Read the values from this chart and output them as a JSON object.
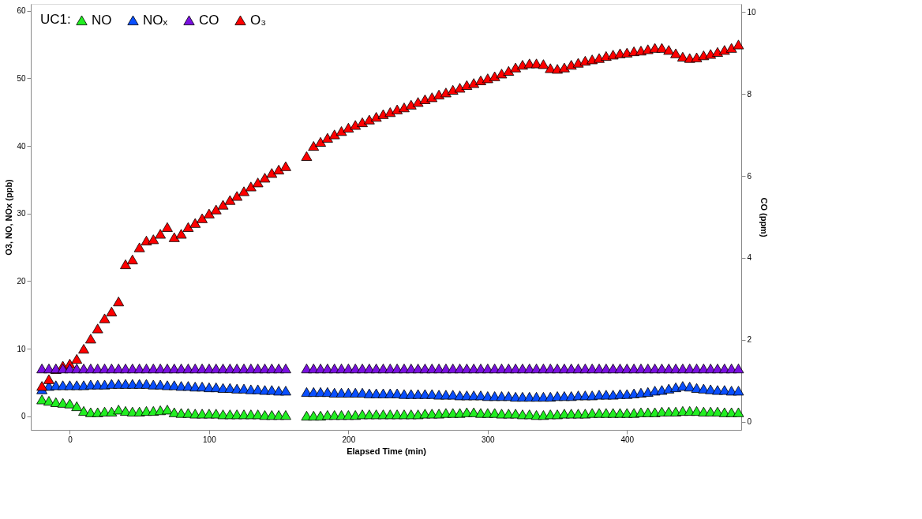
{
  "chart_data": {
    "type": "scatter",
    "xlabel": "Elapsed Time (min)",
    "ylabel": "O3, NO, NOx (ppb)",
    "y2label": "CO (ppm)",
    "legend_title": "UC1:",
    "legend": "top left",
    "marker": "triangle",
    "grid": false,
    "xlim": [
      -28,
      482
    ],
    "xticks": [
      0,
      100,
      200,
      300,
      400
    ],
    "ylim": [
      -2,
      61
    ],
    "yticks": [
      0,
      10,
      20,
      30,
      40,
      50,
      60
    ],
    "y2lim": [
      -0.2,
      10.2
    ],
    "y2ticks": [
      0,
      2,
      4,
      6,
      8,
      10
    ],
    "x": [
      -20,
      -15,
      -10,
      -5,
      0,
      5,
      10,
      15,
      20,
      25,
      30,
      35,
      40,
      45,
      50,
      55,
      60,
      65,
      70,
      75,
      80,
      85,
      90,
      95,
      100,
      105,
      110,
      115,
      120,
      125,
      130,
      135,
      140,
      145,
      150,
      155,
      170,
      175,
      180,
      185,
      190,
      195,
      200,
      205,
      210,
      215,
      220,
      225,
      230,
      235,
      240,
      245,
      250,
      255,
      260,
      265,
      270,
      275,
      280,
      285,
      290,
      295,
      300,
      305,
      310,
      315,
      320,
      325,
      330,
      335,
      340,
      345,
      350,
      355,
      360,
      365,
      370,
      375,
      380,
      385,
      390,
      395,
      400,
      405,
      410,
      415,
      420,
      425,
      430,
      435,
      440,
      445,
      450,
      455,
      460,
      465,
      470,
      475,
      480
    ],
    "series": [
      {
        "name": "NO",
        "color": "#22ee22",
        "values": [
          2.5,
          2.3,
          2.1,
          2,
          1.9,
          1.5,
          0.8,
          0.6,
          0.6,
          0.7,
          0.7,
          1,
          0.8,
          0.7,
          0.7,
          0.8,
          0.8,
          0.9,
          1,
          0.6,
          0.5,
          0.5,
          0.4,
          0.4,
          0.4,
          0.4,
          0.3,
          0.3,
          0.3,
          0.3,
          0.3,
          0.3,
          0.2,
          0.2,
          0.2,
          0.2,
          0.1,
          0.1,
          0.1,
          0.2,
          0.2,
          0.2,
          0.2,
          0.2,
          0.3,
          0.3,
          0.3,
          0.3,
          0.3,
          0.3,
          0.3,
          0.3,
          0.3,
          0.4,
          0.4,
          0.4,
          0.5,
          0.5,
          0.5,
          0.6,
          0.6,
          0.5,
          0.5,
          0.5,
          0.4,
          0.4,
          0.4,
          0.3,
          0.3,
          0.2,
          0.2,
          0.3,
          0.3,
          0.4,
          0.4,
          0.4,
          0.4,
          0.5,
          0.5,
          0.5,
          0.5,
          0.5,
          0.5,
          0.5,
          0.6,
          0.6,
          0.6,
          0.7,
          0.7,
          0.7,
          0.8,
          0.8,
          0.8,
          0.7,
          0.7,
          0.7,
          0.6,
          0.6,
          0.6
        ]
      },
      {
        "name": "NOₓ",
        "color": "#0a4fff",
        "values": [
          4,
          4.5,
          4.6,
          4.6,
          4.6,
          4.6,
          4.6,
          4.7,
          4.7,
          4.7,
          4.8,
          4.8,
          4.8,
          4.8,
          4.8,
          4.8,
          4.7,
          4.7,
          4.6,
          4.6,
          4.5,
          4.5,
          4.4,
          4.4,
          4.3,
          4.3,
          4.2,
          4.2,
          4.1,
          4.1,
          4,
          4,
          3.9,
          3.9,
          3.8,
          3.8,
          3.6,
          3.6,
          3.6,
          3.6,
          3.5,
          3.5,
          3.5,
          3.5,
          3.5,
          3.4,
          3.4,
          3.4,
          3.4,
          3.4,
          3.3,
          3.3,
          3.3,
          3.3,
          3.3,
          3.2,
          3.2,
          3.2,
          3.1,
          3.1,
          3.1,
          3.1,
          3,
          3,
          3,
          3,
          2.9,
          2.9,
          2.9,
          2.9,
          2.9,
          2.9,
          3,
          3,
          3,
          3.1,
          3.1,
          3.1,
          3.2,
          3.2,
          3.2,
          3.3,
          3.3,
          3.4,
          3.5,
          3.6,
          3.8,
          3.9,
          4.1,
          4.3,
          4.5,
          4.4,
          4.2,
          4.1,
          4,
          3.9,
          3.9,
          3.8,
          3.8
        ]
      },
      {
        "name": "CO",
        "color": "#7a10e0",
        "axis": "y2",
        "values": [
          1.3,
          1.3,
          1.3,
          1.3,
          1.3,
          1.3,
          1.3,
          1.3,
          1.3,
          1.3,
          1.3,
          1.3,
          1.3,
          1.3,
          1.3,
          1.3,
          1.3,
          1.3,
          1.3,
          1.3,
          1.3,
          1.3,
          1.3,
          1.3,
          1.3,
          1.3,
          1.3,
          1.3,
          1.3,
          1.3,
          1.3,
          1.3,
          1.3,
          1.3,
          1.3,
          1.3,
          1.3,
          1.3,
          1.3,
          1.3,
          1.3,
          1.3,
          1.3,
          1.3,
          1.3,
          1.3,
          1.3,
          1.3,
          1.3,
          1.3,
          1.3,
          1.3,
          1.3,
          1.3,
          1.3,
          1.3,
          1.3,
          1.3,
          1.3,
          1.3,
          1.3,
          1.3,
          1.3,
          1.3,
          1.3,
          1.3,
          1.3,
          1.3,
          1.3,
          1.3,
          1.3,
          1.3,
          1.3,
          1.3,
          1.3,
          1.3,
          1.3,
          1.3,
          1.3,
          1.3,
          1.3,
          1.3,
          1.3,
          1.3,
          1.3,
          1.3,
          1.3,
          1.3,
          1.3,
          1.3,
          1.3,
          1.3,
          1.3,
          1.3,
          1.3,
          1.3,
          1.3,
          1.3,
          1.3
        ]
      },
      {
        "name": "O₃",
        "color": "#ff0000",
        "values": [
          4.5,
          5.5,
          7,
          7.5,
          7.8,
          8.5,
          10,
          11.5,
          13,
          14.5,
          15.5,
          17,
          22.5,
          23.2,
          25,
          26,
          26.2,
          27,
          28,
          26.5,
          27,
          28,
          28.6,
          29.3,
          30,
          30.6,
          31.3,
          32,
          32.6,
          33.3,
          34,
          34.6,
          35.3,
          36,
          36.5,
          37,
          38.5,
          40,
          40.6,
          41.2,
          41.7,
          42.2,
          42.7,
          43.1,
          43.5,
          43.9,
          44.3,
          44.7,
          45,
          45.4,
          45.7,
          46.1,
          46.5,
          46.9,
          47.2,
          47.6,
          47.9,
          48.3,
          48.6,
          49,
          49.3,
          49.7,
          50,
          50.3,
          50.7,
          51.1,
          51.6,
          52,
          52.2,
          52.2,
          52.1,
          51.5,
          51.4,
          51.6,
          52,
          52.3,
          52.6,
          52.8,
          53,
          53.3,
          53.5,
          53.7,
          53.8,
          54,
          54.1,
          54.3,
          54.5,
          54.5,
          54.2,
          53.7,
          53.2,
          53,
          53.1,
          53.4,
          53.6,
          53.9,
          54.2,
          54.5,
          55
        ]
      }
    ]
  }
}
